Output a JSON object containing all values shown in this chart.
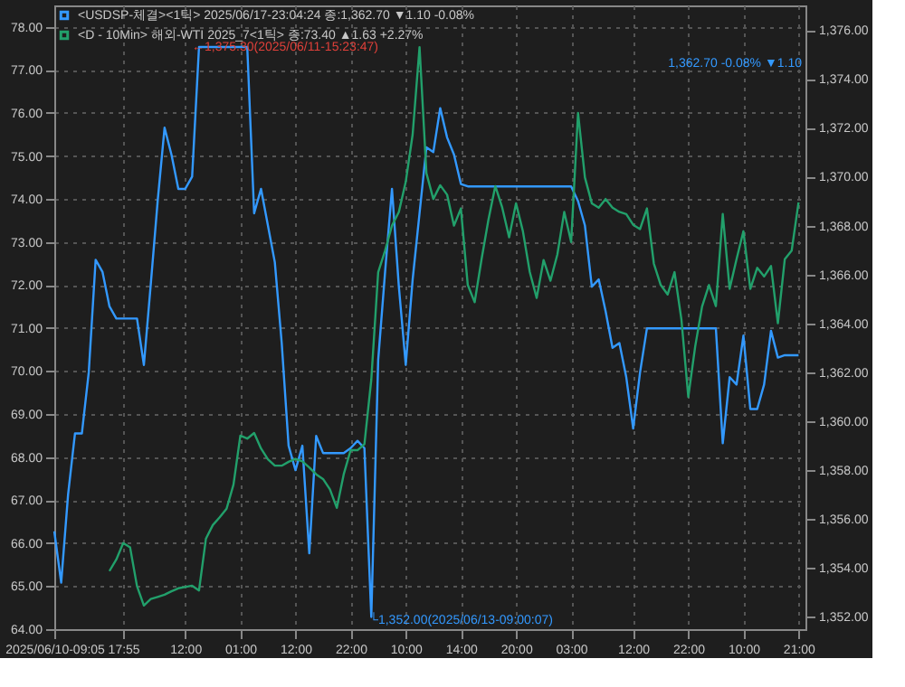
{
  "chart_data": {
    "type": "line",
    "legend": "top left",
    "grid": true,
    "line_style": "solid",
    "marker": "none",
    "categories": [
      "2025/06/10-09:05",
      null,
      null,
      null,
      null,
      null,
      null,
      null,
      null,
      null,
      "17:55",
      null,
      null,
      null,
      null,
      null,
      null,
      null,
      null,
      "12:00",
      null,
      null,
      null,
      null,
      null,
      null,
      null,
      "01:00",
      null,
      null,
      null,
      null,
      null,
      null,
      null,
      "12:00",
      null,
      null,
      null,
      null,
      null,
      null,
      null,
      "22:00",
      null,
      null,
      null,
      null,
      null,
      null,
      null,
      "10:00",
      null,
      null,
      null,
      null,
      null,
      null,
      null,
      "14:00",
      null,
      null,
      null,
      null,
      null,
      null,
      null,
      "20:00",
      null,
      null,
      null,
      null,
      null,
      null,
      null,
      "03:00",
      null,
      null,
      null,
      null,
      null,
      null,
      null,
      null,
      "12:00",
      null,
      null,
      null,
      null,
      null,
      null,
      null,
      "22:00",
      null,
      null,
      null,
      null,
      null,
      null,
      null,
      "10:00",
      null,
      null,
      null,
      null,
      null,
      null,
      null,
      "21:00",
      null
    ],
    "ylim": [
      64,
      78.5
    ],
    "yticks": [
      {
        "value": 64,
        "label": "64.00"
      },
      {
        "value": 65,
        "label": "65.00"
      },
      {
        "value": 66,
        "label": "66.00"
      },
      {
        "value": 67,
        "label": "67.00"
      },
      {
        "value": 68,
        "label": "68.00"
      },
      {
        "value": 69,
        "label": "69.00"
      },
      {
        "value": 70,
        "label": "70.00"
      },
      {
        "value": 71,
        "label": "71.00"
      },
      {
        "value": 72,
        "label": "72.00"
      },
      {
        "value": 73,
        "label": "73.00"
      },
      {
        "value": 74,
        "label": "74.00"
      },
      {
        "value": 75,
        "label": "75.00"
      },
      {
        "value": 76,
        "label": "76.00"
      },
      {
        "value": 77,
        "label": "77.00"
      },
      {
        "value": 78,
        "label": "78.00"
      }
    ],
    "y2lim": [
      1351.5,
      1377
    ],
    "y2ticks": [
      {
        "value": 1352,
        "label": "1,352.00"
      },
      {
        "value": 1354,
        "label": "1,354.00"
      },
      {
        "value": 1356,
        "label": "1,356.00"
      },
      {
        "value": 1358,
        "label": "1,358.00"
      },
      {
        "value": 1360,
        "label": "1,360.00"
      },
      {
        "value": 1362,
        "label": "1,362.00"
      },
      {
        "value": 1364,
        "label": "1,364.00"
      },
      {
        "value": 1366,
        "label": "1,366.00"
      },
      {
        "value": 1368,
        "label": "1,368.00"
      },
      {
        "value": 1370,
        "label": "1,370.00"
      },
      {
        "value": 1372,
        "label": "1,372.00"
      },
      {
        "value": 1374,
        "label": "1,374.00"
      },
      {
        "value": 1376,
        "label": "1,376.00"
      }
    ],
    "series": [
      {
        "name": "<USDSP-체결><1틱> 2025/06/17-23:04:24 종:1,362.70 ▼1.10 -0.08%",
        "color": "#3399ff",
        "axis": "y2",
        "values": [
          1355.5,
          1353.4,
          1357.0,
          1359.5,
          1359.5,
          1362.0,
          1366.6,
          1366.1,
          1364.7,
          1364.2,
          1364.2,
          1364.2,
          1364.2,
          1362.3,
          1365.6,
          1369.0,
          1372.0,
          1370.9,
          1369.5,
          1369.5,
          1370.0,
          1375.3,
          1375.3,
          1375.3,
          1375.3,
          1375.3,
          1375.3,
          1375.3,
          1375.3,
          1368.5,
          1369.5,
          1368.0,
          1366.5,
          1363.2,
          1359.0,
          1358.0,
          1359.0,
          1354.6,
          1359.4,
          1358.7,
          1358.7,
          1358.7,
          1358.7,
          1358.9,
          1359.2,
          1358.9,
          1352.0,
          1362.5,
          1366.1,
          1369.5,
          1365.5,
          1362.3,
          1365.8,
          1368.5,
          1371.2,
          1371.0,
          1372.8,
          1371.6,
          1370.9,
          1369.7,
          1369.6,
          1369.6,
          1369.6,
          1369.6,
          1369.6,
          1369.6,
          1369.6,
          1369.6,
          1369.6,
          1369.6,
          1369.6,
          1369.6,
          1369.6,
          1369.6,
          1369.6,
          1369.6,
          1369.0,
          1368.0,
          1365.5,
          1365.8,
          1364.5,
          1363.0,
          1363.2,
          1361.8,
          1359.7,
          1362.0,
          1363.8,
          1363.8,
          1363.8,
          1363.8,
          1363.8,
          1363.8,
          1363.8,
          1363.8,
          1363.8,
          1363.8,
          1363.8,
          1359.1,
          1361.8,
          1361.5,
          1363.5,
          1360.5,
          1360.5,
          1361.5,
          1363.7,
          1362.6,
          1362.7,
          1362.7,
          1362.7,
          null
        ]
      },
      {
        "name": "<D - 10Min> 해외-WTI 2025_7<1틱> 종:73.40 ▲1.63 +2.27%",
        "color": "#22a06b",
        "values": [
          null,
          null,
          null,
          null,
          null,
          null,
          null,
          null,
          65.35,
          65.62,
          66.0,
          65.9,
          65.0,
          64.55,
          64.7,
          64.75,
          64.8,
          64.88,
          64.95,
          64.98,
          65.01,
          64.9,
          66.1,
          66.42,
          66.6,
          66.8,
          67.36,
          68.5,
          68.43,
          68.56,
          68.2,
          67.95,
          67.8,
          67.8,
          67.89,
          67.96,
          67.9,
          67.76,
          67.6,
          67.49,
          67.25,
          66.82,
          67.6,
          68.16,
          68.16,
          68.3,
          69.8,
          72.3,
          72.8,
          73.38,
          73.7,
          74.4,
          75.5,
          77.53,
          74.6,
          74.0,
          74.32,
          74.1,
          73.38,
          73.78,
          72.0,
          71.6,
          72.6,
          73.52,
          74.3,
          73.8,
          73.11,
          73.9,
          73.25,
          72.3,
          71.7,
          72.58,
          72.1,
          72.71,
          73.7,
          73.0,
          76.0,
          74.5,
          73.9,
          73.8,
          74.0,
          73.8,
          73.7,
          73.65,
          73.4,
          73.3,
          73.78,
          72.5,
          72.0,
          71.78,
          72.3,
          71.2,
          69.4,
          70.57,
          71.5,
          72.0,
          71.51,
          73.65,
          71.91,
          72.6,
          73.25,
          71.91,
          72.4,
          72.2,
          72.44,
          71.11,
          72.6,
          72.8,
          73.92,
          null
        ]
      }
    ],
    "annotations": [
      "←1,375.30(2025/06/11-15:23:47)",
      "└1,352.00(2025/06/13-09:00:07)",
      "1,362.70 -0.08% ▼1.10"
    ]
  }
}
